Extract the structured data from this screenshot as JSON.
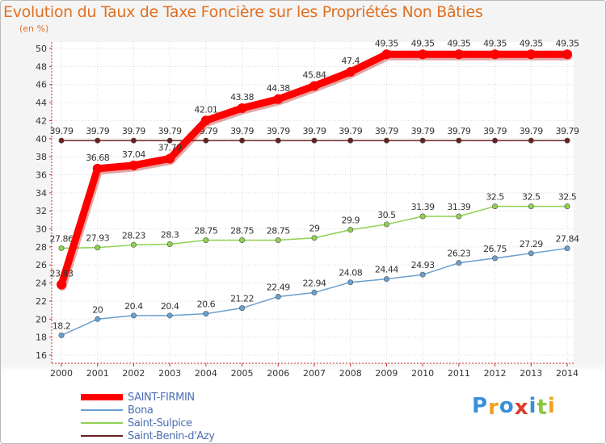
{
  "chart_data": {
    "type": "line",
    "title": "Evolution du Taux de Taxe Foncière sur les Propriétés Non Bâties",
    "ylabel": "(en %)",
    "ylim": [
      16,
      50
    ],
    "yticks": [
      "16",
      "18",
      "20",
      "22",
      "24",
      "26",
      "28",
      "30",
      "32",
      "34",
      "36",
      "38",
      "40",
      "42",
      "44",
      "46",
      "48",
      "50"
    ],
    "categories": [
      "2000",
      "2001",
      "2002",
      "2003",
      "2004",
      "2005",
      "2006",
      "2007",
      "2008",
      "2009",
      "2010",
      "2011",
      "2012",
      "2013",
      "2014"
    ],
    "series": [
      {
        "name": "Saint-Benin-d'Azy",
        "color": "#6b2020",
        "values": [
          39.79,
          39.79,
          39.79,
          39.79,
          39.79,
          39.79,
          39.79,
          39.79,
          39.79,
          39.79,
          39.79,
          39.79,
          39.79,
          39.79,
          39.79
        ],
        "labels": [
          "39.79",
          "39.79",
          "39.79",
          "39.79",
          "39.79",
          "39.79",
          "39.79",
          "39.79",
          "39.79",
          "39.79",
          "39.79",
          "39.79",
          "39.79",
          "39.79",
          "39.79"
        ]
      },
      {
        "name": "Saint-Sulpice",
        "color": "#8fd14f",
        "values": [
          27.86,
          27.93,
          28.23,
          28.3,
          28.75,
          28.75,
          28.75,
          29,
          29.9,
          30.5,
          31.39,
          31.39,
          32.5,
          32.5,
          32.5
        ],
        "labels": [
          "27.86",
          "27.93",
          "28.23",
          "28.3",
          "28.75",
          "28.75",
          "28.75",
          "29",
          "29.9",
          "30.5",
          "31.39",
          "31.39",
          "32.5",
          "32.5",
          "32.5"
        ]
      },
      {
        "name": "Bona",
        "color": "#6a9fcf",
        "values": [
          18.2,
          20,
          20.4,
          20.4,
          20.6,
          21.22,
          22.49,
          22.94,
          24.08,
          24.44,
          24.93,
          26.23,
          26.75,
          27.29,
          27.84
        ],
        "labels": [
          "18.2",
          "20",
          "20.4",
          "20.4",
          "20.6",
          "21.22",
          "22.49",
          "22.94",
          "24.08",
          "24.44",
          "24.93",
          "26.23",
          "26.75",
          "27.29",
          "27.84"
        ]
      },
      {
        "name": "SAINT-FIRMIN",
        "color": "#ff0000",
        "values": [
          23.83,
          36.68,
          37.04,
          37.79,
          42.01,
          43.38,
          44.38,
          45.84,
          47.4,
          49.35,
          49.35,
          49.35,
          49.35,
          49.35,
          49.35
        ],
        "labels": [
          "23.83",
          "36.68",
          "37.04",
          "37.79",
          "42.01",
          "43.38",
          "44.38",
          "45.84",
          "47.4",
          "49.35",
          "49.35",
          "49.35",
          "49.35",
          "49.35",
          "49.35"
        ]
      }
    ],
    "legend": [
      "SAINT-FIRMIN",
      "Bona",
      "Saint-Sulpice",
      "Saint-Benin-d'Azy"
    ],
    "legend_position": "bottom-left"
  },
  "logo": {
    "letters": [
      "P",
      "r",
      "o",
      "x",
      "i",
      "t",
      "i"
    ],
    "colors": [
      "#3a8fd8",
      "#f0a020",
      "#3a8fd8",
      "#e03a2a",
      "#3a8fd8",
      "#8cc63f",
      "#f0a020"
    ]
  }
}
